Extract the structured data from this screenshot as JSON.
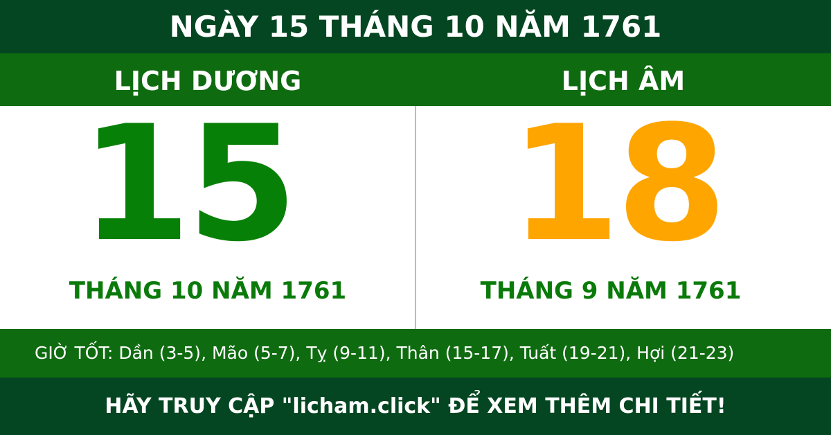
{
  "title": "NGÀY 15 THÁNG 10 NĂM 1761",
  "solar": {
    "heading": "LỊCH DƯƠNG",
    "day": "15",
    "month_year": "THÁNG 10 NĂM 1761",
    "color": "#078007"
  },
  "lunar": {
    "heading": "LỊCH ÂM",
    "day": "18",
    "month_year": "THÁNG 9 NĂM 1761",
    "color": "#ffa500"
  },
  "good_hours": "GIỜ TỐT: Dần (3-5), Mão (5-7), Tỵ (9-11), Thân (15-17), Tuất (19-21), Hợi (21-23)",
  "footer": "HÃY TRUY CẬP \"licham.click\" ĐỂ XEM THÊM CHI TIẾT!"
}
